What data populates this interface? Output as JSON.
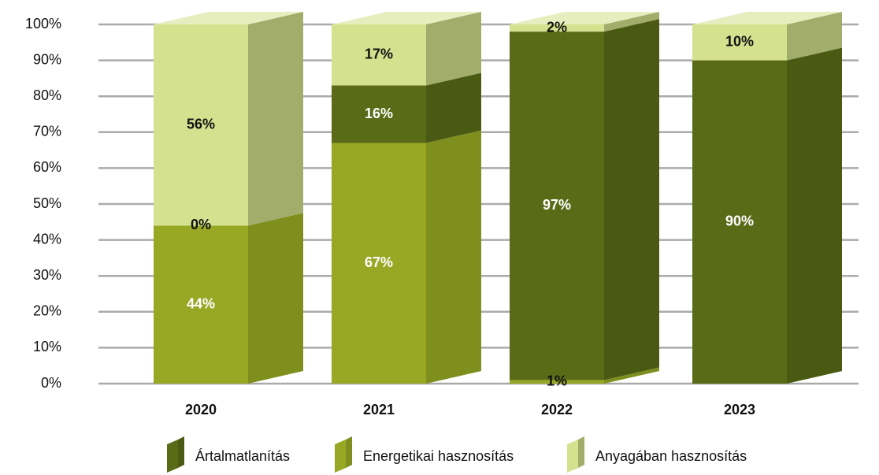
{
  "chart_data": {
    "type": "bar",
    "stacked": true,
    "categories": [
      "2020",
      "2021",
      "2022",
      "2023"
    ],
    "series": [
      {
        "name": "Ártalmatlanítás",
        "color": "#5a6b17",
        "side_color": "#4b5a12",
        "label_color": "#ffffff",
        "values": [
          0,
          16,
          97,
          90
        ],
        "value_labels": [
          "0%",
          "16%",
          "97%",
          "90%"
        ]
      },
      {
        "name": "Energetikai hasznosítás",
        "color": "#98a825",
        "side_color": "#7f8f1e",
        "label_color": "#ffffff",
        "values": [
          44,
          67,
          1,
          0
        ],
        "value_labels": [
          "44%",
          "67%",
          "1%",
          null
        ]
      },
      {
        "name": "Anyagában hasznosítás",
        "color": "#d4e18e",
        "side_color": "#a2ad6b",
        "label_color": "#111111",
        "values": [
          56,
          17,
          2,
          10
        ],
        "value_labels": [
          "56%",
          "17%",
          "2%",
          "10%"
        ]
      }
    ],
    "ylim": [
      0,
      100
    ],
    "yticks": [
      {
        "value": 0,
        "label": "0%"
      },
      {
        "value": 10,
        "label": "10%"
      },
      {
        "value": 20,
        "label": "20%"
      },
      {
        "value": 30,
        "label": "30%"
      },
      {
        "value": 40,
        "label": "40%"
      },
      {
        "value": 50,
        "label": "50%"
      },
      {
        "value": 60,
        "label": "60%"
      },
      {
        "value": 70,
        "label": "70%"
      },
      {
        "value": 80,
        "label": "80%"
      },
      {
        "value": 90,
        "label": "90%"
      },
      {
        "value": 100,
        "label": "100%"
      }
    ],
    "grid": true,
    "legend": "bottom"
  }
}
